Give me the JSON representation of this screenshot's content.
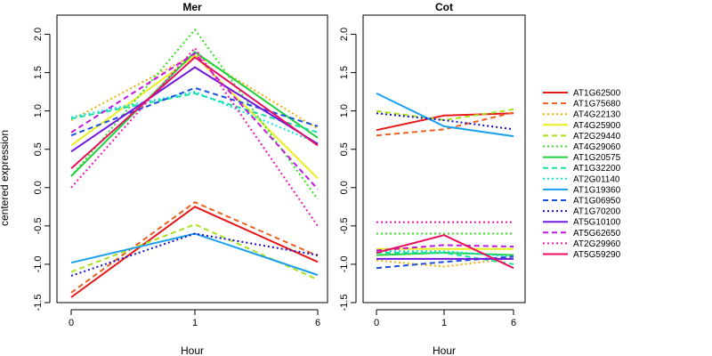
{
  "chart_data": {
    "type": "line",
    "ylabel": "centered expression",
    "xlabel": "Hour",
    "x": [
      0,
      1,
      6
    ],
    "x_tick_labels": [
      "0",
      "1",
      "6"
    ],
    "ylim": [
      -1.5,
      2.25
    ],
    "y_ticks": [
      -1.5,
      -1.0,
      -0.5,
      0.0,
      0.5,
      1.0,
      1.5,
      2.0
    ],
    "y_tick_labels": [
      "-1.5",
      "-1.0",
      "-0.5",
      "0.0",
      "0.5",
      "1.0",
      "1.5",
      "2.0"
    ],
    "legend_position": "right",
    "series": [
      {
        "name": "AT1G62500",
        "color": "#e8171a",
        "dash": "solid"
      },
      {
        "name": "AT1G75680",
        "color": "#ee6020",
        "dash": "dashed"
      },
      {
        "name": "AT4G22130",
        "color": "#f0b000",
        "dash": "dotted"
      },
      {
        "name": "AT4G25900",
        "color": "#eaee20",
        "dash": "solid"
      },
      {
        "name": "AT2G29440",
        "color": "#a8e21a",
        "dash": "dashed"
      },
      {
        "name": "AT4G29060",
        "color": "#38e020",
        "dash": "dotted"
      },
      {
        "name": "AT1G20575",
        "color": "#22d040",
        "dash": "solid"
      },
      {
        "name": "AT1G32200",
        "color": "#18e0a0",
        "dash": "dashed"
      },
      {
        "name": "AT2G01140",
        "color": "#10e0e0",
        "dash": "dotted"
      },
      {
        "name": "AT1G19360",
        "color": "#1aa0ee",
        "dash": "solid"
      },
      {
        "name": "AT1G06950",
        "color": "#1a50e0",
        "dash": "dashed"
      },
      {
        "name": "AT1G70200",
        "color": "#1a10c8",
        "dash": "dotted"
      },
      {
        "name": "AT5G10100",
        "color": "#7018e0",
        "dash": "solid"
      },
      {
        "name": "AT5G62650",
        "color": "#c018e0",
        "dash": "dashed"
      },
      {
        "name": "AT2G29960",
        "color": "#ee18b0",
        "dash": "dotted"
      },
      {
        "name": "AT5G59290",
        "color": "#e81060",
        "dash": "solid"
      }
    ],
    "panels": [
      {
        "title": "Mer",
        "lines": [
          {
            "series": "AT1G62500",
            "values": [
              -1.43,
              -0.25,
              -0.97
            ]
          },
          {
            "series": "AT1G75680",
            "values": [
              -1.37,
              -0.19,
              -0.89
            ]
          },
          {
            "series": "AT4G22130",
            "values": [
              0.88,
              1.74,
              0.77
            ]
          },
          {
            "series": "AT4G25900",
            "values": [
              0.55,
              1.72,
              0.12
            ]
          },
          {
            "series": "AT2G29440",
            "values": [
              -1.1,
              -0.48,
              -1.2
            ]
          },
          {
            "series": "AT4G29060",
            "values": [
              0.15,
              2.06,
              -0.15
            ]
          },
          {
            "series": "AT1G20575",
            "values": [
              0.15,
              1.77,
              0.65
            ]
          },
          {
            "series": "AT1G32200",
            "values": [
              0.9,
              1.23,
              0.72
            ]
          },
          {
            "series": "AT2G01140",
            "values": [
              0.92,
              1.25,
              0.58
            ]
          },
          {
            "series": "AT1G19360",
            "values": [
              -0.98,
              -0.6,
              -1.14
            ]
          },
          {
            "series": "AT1G06950",
            "values": [
              0.68,
              1.3,
              0.8
            ]
          },
          {
            "series": "AT1G70200",
            "values": [
              -1.15,
              -0.6,
              -0.88
            ]
          },
          {
            "series": "AT5G10100",
            "values": [
              0.47,
              1.57,
              0.57
            ]
          },
          {
            "series": "AT5G62650",
            "values": [
              0.72,
              1.75,
              -0.02
            ]
          },
          {
            "series": "AT2G29960",
            "values": [
              0.0,
              1.82,
              -0.5
            ]
          },
          {
            "series": "AT5G59290",
            "values": [
              0.25,
              1.7,
              0.55
            ]
          }
        ]
      },
      {
        "title": "Cot",
        "lines": [
          {
            "series": "AT1G62500",
            "values": [
              0.75,
              0.94,
              0.97
            ]
          },
          {
            "series": "AT1G75680",
            "values": [
              0.68,
              0.76,
              0.98
            ]
          },
          {
            "series": "AT4G22130",
            "values": [
              -0.95,
              -1.03,
              -0.92
            ]
          },
          {
            "series": "AT4G25900",
            "values": [
              -0.8,
              -0.8,
              -0.8
            ]
          },
          {
            "series": "AT2G29440",
            "values": [
              1.0,
              0.88,
              1.02
            ]
          },
          {
            "series": "AT4G29060",
            "values": [
              -0.6,
              -0.6,
              -0.6
            ]
          },
          {
            "series": "AT1G20575",
            "values": [
              -0.88,
              -0.85,
              -0.88
            ]
          },
          {
            "series": "AT1G32200",
            "values": [
              -0.85,
              -0.85,
              -1.0
            ]
          },
          {
            "series": "AT2G01140",
            "values": [
              -0.83,
              -0.83,
              -0.9
            ]
          },
          {
            "series": "AT1G19360",
            "values": [
              1.23,
              0.8,
              0.67
            ]
          },
          {
            "series": "AT1G06950",
            "values": [
              -1.05,
              -0.97,
              -0.9
            ]
          },
          {
            "series": "AT1G70200",
            "values": [
              0.97,
              0.88,
              0.76
            ]
          },
          {
            "series": "AT5G10100",
            "values": [
              -0.93,
              -0.93,
              -0.93
            ]
          },
          {
            "series": "AT5G62650",
            "values": [
              -0.82,
              -0.75,
              -0.77
            ]
          },
          {
            "series": "AT2G29960",
            "values": [
              -0.45,
              -0.45,
              -0.45
            ]
          },
          {
            "series": "AT5G59290",
            "values": [
              -0.85,
              -0.62,
              -1.05
            ]
          }
        ]
      }
    ]
  }
}
